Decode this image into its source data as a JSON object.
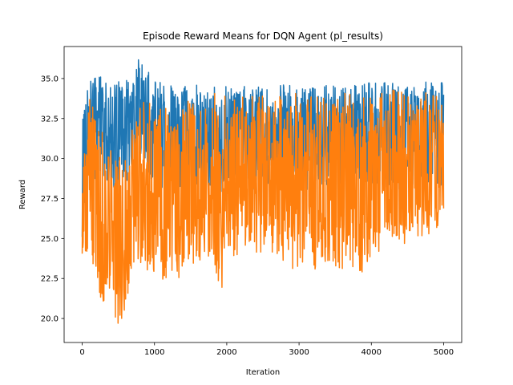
{
  "chart_data": {
    "type": "line",
    "title": "Episode Reward Means for DQN Agent (pl_results)",
    "xlabel": "Iteration",
    "ylabel": "Reward",
    "xlim": [
      -250,
      5250
    ],
    "ylim": [
      18.5,
      37.0
    ],
    "xticks": [
      0,
      1000,
      2000,
      3000,
      4000,
      5000
    ],
    "xtick_labels": [
      "0",
      "1000",
      "2000",
      "3000",
      "4000",
      "5000"
    ],
    "yticks": [
      20.0,
      22.5,
      25.0,
      27.5,
      30.0,
      32.5,
      35.0
    ],
    "ytick_labels": [
      "20.0",
      "22.5",
      "25.0",
      "27.5",
      "30.0",
      "32.5",
      "35.0"
    ],
    "grid": false,
    "legend": "none",
    "colors": {
      "series_1": "#1f77b4",
      "series_2": "#ff7f0e"
    },
    "series": [
      {
        "x": [
          0,
          100,
          200,
          300,
          400,
          500,
          600,
          700,
          800,
          900,
          1000,
          1100,
          1200,
          1300,
          1400,
          1500,
          1600,
          1700,
          1800,
          1900,
          2000,
          2100,
          2200,
          2300,
          2400,
          2500,
          2600,
          2700,
          2800,
          2900,
          3000,
          3100,
          3200,
          3300,
          3400,
          3500,
          3600,
          3700,
          3800,
          3900,
          4000,
          4100,
          4200,
          4300,
          4400,
          4500,
          4600,
          4700,
          4800,
          4900,
          5000
        ],
        "values": [
          31.5,
          32.5,
          32.3,
          31.8,
          31.2,
          30.8,
          31.0,
          32.2,
          33.0,
          32.6,
          31.5,
          31.2,
          31.0,
          31.0,
          31.0,
          31.2,
          31.0,
          31.0,
          31.0,
          31.0,
          31.0,
          31.0,
          31.2,
          31.2,
          31.0,
          31.2,
          31.3,
          31.2,
          31.3,
          31.3,
          31.2,
          31.2,
          31.4,
          31.4,
          31.3,
          31.2,
          31.4,
          31.3,
          31.3,
          31.4,
          31.3,
          31.4,
          31.4,
          31.5,
          31.3,
          31.5,
          31.5,
          31.4,
          31.6,
          31.5,
          31.4
        ],
        "min": [
          24.0,
          28.5,
          28.8,
          28.8,
          28.2,
          28.0,
          28.2,
          29.0,
          29.5,
          29.0,
          28.5,
          28.2,
          28.0,
          27.8,
          28.0,
          28.0,
          28.0,
          28.0,
          27.8,
          27.8,
          28.0,
          28.0,
          28.2,
          28.2,
          28.0,
          28.0,
          28.2,
          28.2,
          28.0,
          28.2,
          28.0,
          28.0,
          28.2,
          28.2,
          28.0,
          28.0,
          28.2,
          28.0,
          28.2,
          28.2,
          28.0,
          28.2,
          28.2,
          28.2,
          28.0,
          28.2,
          28.2,
          28.2,
          28.4,
          28.2,
          28.2
        ],
        "max": [
          33.5,
          35.5,
          35.4,
          35.0,
          34.8,
          34.9,
          35.0,
          35.8,
          36.3,
          35.6,
          35.0,
          34.8,
          34.6,
          34.5,
          34.6,
          34.8,
          34.7,
          34.6,
          34.7,
          34.6,
          34.6,
          34.5,
          34.7,
          34.6,
          34.7,
          34.6,
          34.8,
          34.6,
          34.7,
          34.6,
          34.7,
          34.5,
          34.8,
          34.6,
          34.7,
          34.6,
          34.8,
          34.7,
          34.6,
          34.8,
          34.7,
          34.8,
          34.9,
          34.8,
          34.7,
          34.9,
          34.8,
          34.9,
          35.1,
          34.9,
          34.8
        ]
      },
      {
        "x": [
          0,
          100,
          200,
          300,
          400,
          500,
          600,
          700,
          800,
          900,
          1000,
          1100,
          1200,
          1300,
          1400,
          1500,
          1600,
          1700,
          1800,
          1900,
          2000,
          2100,
          2200,
          2300,
          2400,
          2500,
          2600,
          2700,
          2800,
          2900,
          3000,
          3100,
          3200,
          3300,
          3400,
          3500,
          3600,
          3700,
          3800,
          3900,
          4000,
          4100,
          4200,
          4300,
          4400,
          4500,
          4600,
          4700,
          4800,
          4900,
          5000
        ],
        "values": [
          27.5,
          28.5,
          27.5,
          26.0,
          25.2,
          24.8,
          25.2,
          26.8,
          28.2,
          28.5,
          28.0,
          27.8,
          27.5,
          27.3,
          27.4,
          27.5,
          27.5,
          27.8,
          27.8,
          28.0,
          28.2,
          28.0,
          28.0,
          28.2,
          28.2,
          28.0,
          28.2,
          28.2,
          28.0,
          28.2,
          28.0,
          28.2,
          28.3,
          28.0,
          28.2,
          28.2,
          28.3,
          28.2,
          28.1,
          28.3,
          28.4,
          28.3,
          28.4,
          28.5,
          28.4,
          28.6,
          28.5,
          28.5,
          28.8,
          28.6,
          28.5
        ],
        "min": [
          24.0,
          24.2,
          21.5,
          20.6,
          20.4,
          19.4,
          20.5,
          22.0,
          23.5,
          23.0,
          22.5,
          22.0,
          21.5,
          22.0,
          23.0,
          23.2,
          23.5,
          23.8,
          24.0,
          20.7,
          24.0,
          23.8,
          24.0,
          23.8,
          24.0,
          23.6,
          23.8,
          24.0,
          23.5,
          23.0,
          23.0,
          22.0,
          23.0,
          23.2,
          23.5,
          22.8,
          23.0,
          23.4,
          23.0,
          22.8,
          24.0,
          24.0,
          24.3,
          24.5,
          24.5,
          24.8,
          24.8,
          24.9,
          25.2,
          25.6,
          25.7
        ],
        "max": [
          31.2,
          33.8,
          33.0,
          31.5,
          31.0,
          30.5,
          31.0,
          32.0,
          33.6,
          33.9,
          33.5,
          33.5,
          33.5,
          33.2,
          33.5,
          33.8,
          33.5,
          33.7,
          33.6,
          35.4,
          34.2,
          33.8,
          33.8,
          34.2,
          34.0,
          34.2,
          34.0,
          34.0,
          33.6,
          34.2,
          34.0,
          33.8,
          34.0,
          34.0,
          34.1,
          34.0,
          34.0,
          34.2,
          34.0,
          34.3,
          34.0,
          34.6,
          34.0,
          34.3,
          34.4,
          34.3,
          34.6,
          34.0,
          34.5,
          34.2,
          34.0
        ]
      }
    ]
  }
}
